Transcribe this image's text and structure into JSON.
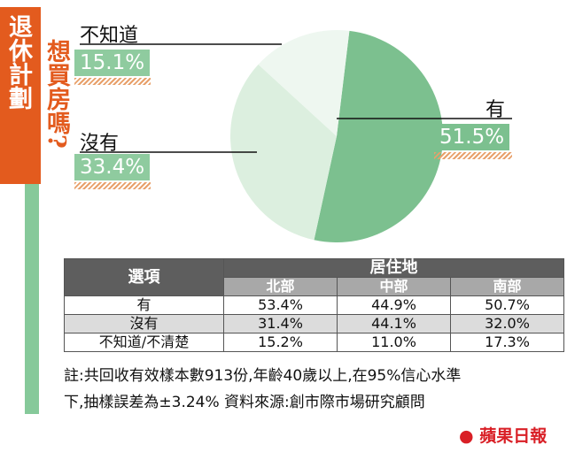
{
  "title": {
    "line1": "退休計劃",
    "line2": "想買房嗎?"
  },
  "chart_data": {
    "type": "pie",
    "slices": [
      {
        "label": "有",
        "value": 51.5,
        "display": "51.5%",
        "color": "#7cc08f"
      },
      {
        "label": "沒有",
        "value": 33.4,
        "display": "33.4%",
        "color": "#dcefdf"
      },
      {
        "label": "不知道",
        "value": 15.1,
        "display": "15.1%",
        "color": "#eef7f0"
      }
    ]
  },
  "table": {
    "corner_header": "選項",
    "group_header": "居住地",
    "columns": [
      "北部",
      "中部",
      "南部"
    ],
    "rows": [
      {
        "label": "有",
        "values": [
          "53.4%",
          "44.9%",
          "50.7%"
        ]
      },
      {
        "label": "沒有",
        "values": [
          "31.4%",
          "44.1%",
          "32.0%"
        ]
      },
      {
        "label": "不知道/不清楚",
        "values": [
          "15.2%",
          "11.0%",
          "17.3%"
        ]
      }
    ]
  },
  "note": {
    "line1": "註:共回收有效樣本數913份,年齡40歲以上,在95%信心水準",
    "line2": "下,抽樣誤差為±3.24% 資料來源:創市際市場研究顧問"
  },
  "logo": "蘋果日報",
  "colors": {
    "accent": "#e35b1e",
    "green": "#7cc08f",
    "table_header": "#5e5e5e"
  }
}
